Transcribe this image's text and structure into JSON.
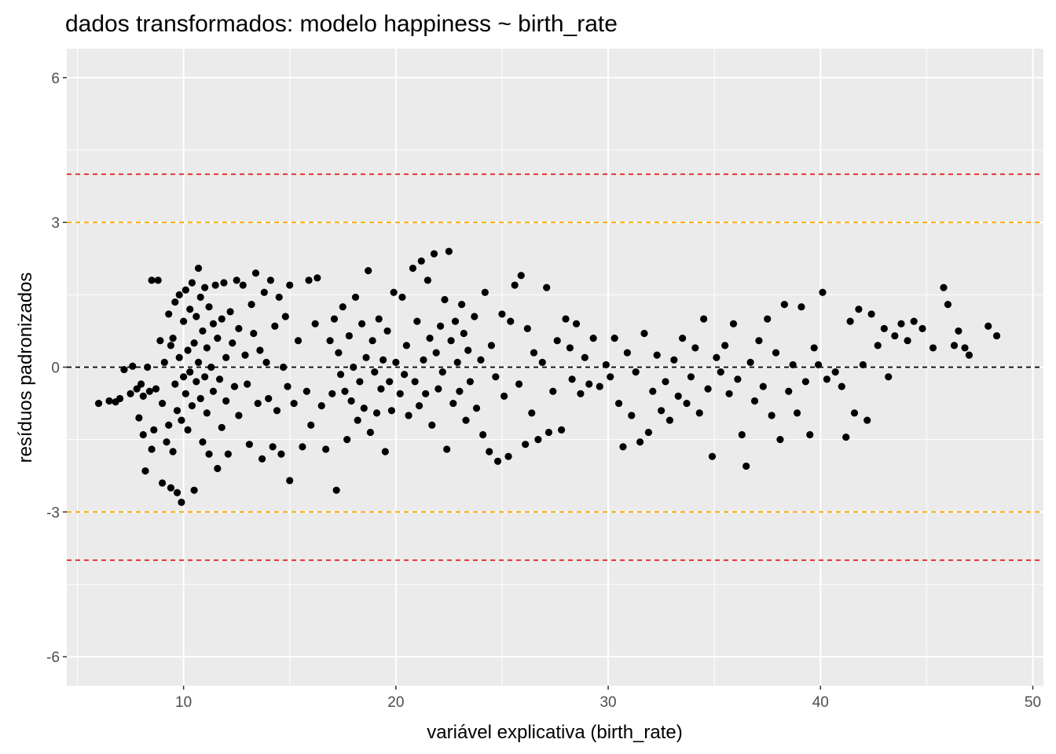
{
  "chart_data": {
    "type": "scatter",
    "title": "dados transformados: modelo happiness ~ birth_rate",
    "xlabel": "variável explicativa (birth_rate)",
    "ylabel": "resíduos padronizados",
    "xlim": [
      4.5,
      50.5
    ],
    "ylim": [
      -6.6,
      6.6
    ],
    "x_ticks": [
      10,
      20,
      30,
      40,
      50
    ],
    "y_ticks": [
      -6,
      -3,
      0,
      3,
      6
    ],
    "x_tick_labels": [
      "10",
      "20",
      "30",
      "40",
      "50"
    ],
    "y_tick_labels": [
      "-6",
      "-3",
      "0",
      "3",
      "6"
    ],
    "grid": true,
    "legend": "none",
    "reference_lines": [
      {
        "y": 4,
        "color": "#e41a1c",
        "style": "dashed"
      },
      {
        "y": 3,
        "color": "#ffa500",
        "style": "dashed"
      },
      {
        "y": 0,
        "color": "#000000",
        "style": "dashed"
      },
      {
        "y": -3,
        "color": "#ffa500",
        "style": "dashed"
      },
      {
        "y": -4,
        "color": "#e41a1c",
        "style": "dashed"
      }
    ],
    "point_color": "#000000",
    "panel_background": "#ebebeb",
    "series": [
      {
        "points": [
          [
            6.0,
            -0.75
          ],
          [
            6.5,
            -0.7
          ],
          [
            6.8,
            -0.72
          ],
          [
            7.0,
            -0.65
          ],
          [
            7.2,
            -0.05
          ],
          [
            7.5,
            -0.55
          ],
          [
            7.6,
            0.02
          ],
          [
            7.8,
            -0.45
          ],
          [
            7.9,
            -1.05
          ],
          [
            8.0,
            -0.35
          ],
          [
            8.1,
            -0.6
          ],
          [
            8.1,
            -1.4
          ],
          [
            8.2,
            -2.15
          ],
          [
            8.3,
            0.0
          ],
          [
            8.4,
            -0.5
          ],
          [
            8.5,
            1.8
          ],
          [
            8.5,
            -1.7
          ],
          [
            8.6,
            -1.3
          ],
          [
            8.7,
            -0.45
          ],
          [
            8.8,
            1.8
          ],
          [
            8.9,
            0.55
          ],
          [
            9.0,
            -2.4
          ],
          [
            9.0,
            -0.75
          ],
          [
            9.1,
            0.1
          ],
          [
            9.2,
            -1.55
          ],
          [
            9.3,
            1.1
          ],
          [
            9.3,
            -1.2
          ],
          [
            9.4,
            0.45
          ],
          [
            9.4,
            -2.5
          ],
          [
            9.5,
            -1.75
          ],
          [
            9.5,
            0.6
          ],
          [
            9.6,
            -0.35
          ],
          [
            9.6,
            1.35
          ],
          [
            9.7,
            -2.6
          ],
          [
            9.7,
            -0.9
          ],
          [
            9.8,
            0.2
          ],
          [
            9.8,
            1.5
          ],
          [
            9.9,
            -1.1
          ],
          [
            9.9,
            -2.8
          ],
          [
            10.0,
            0.95
          ],
          [
            10.0,
            -0.2
          ],
          [
            10.1,
            1.6
          ],
          [
            10.1,
            -0.55
          ],
          [
            10.2,
            0.35
          ],
          [
            10.2,
            -1.3
          ],
          [
            10.3,
            1.2
          ],
          [
            10.3,
            -0.1
          ],
          [
            10.4,
            1.75
          ],
          [
            10.4,
            -0.8
          ],
          [
            10.5,
            0.5
          ],
          [
            10.5,
            -2.55
          ],
          [
            10.6,
            1.05
          ],
          [
            10.6,
            -0.3
          ],
          [
            10.7,
            2.05
          ],
          [
            10.7,
            0.1
          ],
          [
            10.8,
            -0.65
          ],
          [
            10.8,
            1.45
          ],
          [
            10.9,
            0.75
          ],
          [
            10.9,
            -1.55
          ],
          [
            11.0,
            -0.2
          ],
          [
            11.0,
            1.65
          ],
          [
            11.1,
            0.4
          ],
          [
            11.1,
            -0.95
          ],
          [
            11.2,
            1.25
          ],
          [
            11.2,
            -1.8
          ],
          [
            11.3,
            0.0
          ],
          [
            11.4,
            0.9
          ],
          [
            11.4,
            -0.5
          ],
          [
            11.5,
            1.7
          ],
          [
            11.6,
            -2.1
          ],
          [
            11.6,
            0.6
          ],
          [
            11.7,
            -0.25
          ],
          [
            11.8,
            1.0
          ],
          [
            11.8,
            -1.25
          ],
          [
            11.9,
            1.75
          ],
          [
            12.0,
            0.2
          ],
          [
            12.0,
            -0.7
          ],
          [
            12.1,
            -1.8
          ],
          [
            12.2,
            1.15
          ],
          [
            12.3,
            0.5
          ],
          [
            12.4,
            -0.4
          ],
          [
            12.5,
            1.8
          ],
          [
            12.6,
            0.8
          ],
          [
            12.6,
            -1.0
          ],
          [
            12.8,
            1.7
          ],
          [
            12.9,
            0.25
          ],
          [
            13.0,
            -0.35
          ],
          [
            13.1,
            -1.6
          ],
          [
            13.2,
            1.3
          ],
          [
            13.3,
            0.7
          ],
          [
            13.4,
            1.95
          ],
          [
            13.5,
            -0.75
          ],
          [
            13.6,
            0.35
          ],
          [
            13.7,
            -1.9
          ],
          [
            13.8,
            1.55
          ],
          [
            13.9,
            0.1
          ],
          [
            14.0,
            -0.65
          ],
          [
            14.1,
            1.8
          ],
          [
            14.2,
            -1.65
          ],
          [
            14.3,
            0.85
          ],
          [
            14.4,
            -0.9
          ],
          [
            14.5,
            1.45
          ],
          [
            14.6,
            -1.8
          ],
          [
            14.7,
            0.0
          ],
          [
            14.8,
            1.05
          ],
          [
            14.9,
            -0.4
          ],
          [
            15.0,
            -2.35
          ],
          [
            15.0,
            1.7
          ],
          [
            15.2,
            -0.75
          ],
          [
            15.4,
            0.55
          ],
          [
            15.6,
            -1.65
          ],
          [
            15.8,
            -0.5
          ],
          [
            15.9,
            1.8
          ],
          [
            16.0,
            -1.2
          ],
          [
            16.2,
            0.9
          ],
          [
            16.3,
            1.85
          ],
          [
            16.5,
            -0.8
          ],
          [
            16.7,
            -1.7
          ],
          [
            16.9,
            0.55
          ],
          [
            17.0,
            -0.55
          ],
          [
            17.1,
            1.0
          ],
          [
            17.2,
            -2.55
          ],
          [
            17.3,
            0.3
          ],
          [
            17.4,
            -0.15
          ],
          [
            17.5,
            1.25
          ],
          [
            17.6,
            -0.5
          ],
          [
            17.7,
            -1.5
          ],
          [
            17.8,
            0.65
          ],
          [
            17.9,
            -0.7
          ],
          [
            18.0,
            0.0
          ],
          [
            18.1,
            1.45
          ],
          [
            18.2,
            -1.1
          ],
          [
            18.3,
            -0.3
          ],
          [
            18.4,
            0.9
          ],
          [
            18.5,
            -0.85
          ],
          [
            18.6,
            0.2
          ],
          [
            18.7,
            2.0
          ],
          [
            18.8,
            -1.35
          ],
          [
            18.9,
            0.55
          ],
          [
            19.0,
            -0.1
          ],
          [
            19.1,
            -0.95
          ],
          [
            19.2,
            1.0
          ],
          [
            19.3,
            -0.45
          ],
          [
            19.4,
            0.15
          ],
          [
            19.5,
            -1.75
          ],
          [
            19.6,
            0.75
          ],
          [
            19.7,
            -0.3
          ],
          [
            19.8,
            -0.9
          ],
          [
            19.9,
            1.55
          ],
          [
            20.0,
            0.1
          ],
          [
            20.2,
            -0.55
          ],
          [
            20.3,
            1.45
          ],
          [
            20.4,
            -0.15
          ],
          [
            20.5,
            0.45
          ],
          [
            20.6,
            -1.0
          ],
          [
            20.8,
            2.05
          ],
          [
            20.9,
            -0.3
          ],
          [
            21.0,
            0.95
          ],
          [
            21.1,
            -0.8
          ],
          [
            21.2,
            2.2
          ],
          [
            21.3,
            0.15
          ],
          [
            21.4,
            -0.55
          ],
          [
            21.5,
            1.8
          ],
          [
            21.6,
            0.6
          ],
          [
            21.7,
            -1.2
          ],
          [
            21.8,
            2.35
          ],
          [
            21.9,
            0.3
          ],
          [
            22.0,
            -0.45
          ],
          [
            22.1,
            0.85
          ],
          [
            22.2,
            -0.1
          ],
          [
            22.3,
            1.4
          ],
          [
            22.4,
            -1.7
          ],
          [
            22.5,
            2.4
          ],
          [
            22.6,
            0.55
          ],
          [
            22.7,
            -0.75
          ],
          [
            22.8,
            0.95
          ],
          [
            22.9,
            0.1
          ],
          [
            23.0,
            -0.5
          ],
          [
            23.1,
            1.3
          ],
          [
            23.2,
            0.7
          ],
          [
            23.3,
            -1.1
          ],
          [
            23.4,
            0.35
          ],
          [
            23.5,
            -0.3
          ],
          [
            23.7,
            1.05
          ],
          [
            23.8,
            -0.85
          ],
          [
            24.0,
            0.15
          ],
          [
            24.1,
            -1.4
          ],
          [
            24.2,
            1.55
          ],
          [
            24.4,
            -1.75
          ],
          [
            24.5,
            0.45
          ],
          [
            24.7,
            -0.2
          ],
          [
            24.8,
            -1.95
          ],
          [
            25.0,
            1.1
          ],
          [
            25.1,
            -0.6
          ],
          [
            25.3,
            -1.85
          ],
          [
            25.4,
            0.95
          ],
          [
            25.6,
            1.7
          ],
          [
            25.8,
            -0.35
          ],
          [
            25.9,
            1.9
          ],
          [
            26.1,
            -1.6
          ],
          [
            26.2,
            0.8
          ],
          [
            26.4,
            -0.95
          ],
          [
            26.5,
            0.3
          ],
          [
            26.7,
            -1.5
          ],
          [
            26.9,
            0.1
          ],
          [
            27.1,
            1.65
          ],
          [
            27.2,
            -1.35
          ],
          [
            27.4,
            -0.5
          ],
          [
            27.6,
            0.55
          ],
          [
            27.8,
            -1.3
          ],
          [
            28.0,
            1.0
          ],
          [
            28.2,
            0.4
          ],
          [
            28.3,
            -0.25
          ],
          [
            28.5,
            0.9
          ],
          [
            28.7,
            -0.55
          ],
          [
            28.9,
            0.2
          ],
          [
            29.1,
            -0.35
          ],
          [
            29.3,
            0.6
          ],
          [
            29.6,
            -0.4
          ],
          [
            29.9,
            0.05
          ],
          [
            30.1,
            -0.2
          ],
          [
            30.3,
            0.6
          ],
          [
            30.5,
            -0.75
          ],
          [
            30.7,
            -1.65
          ],
          [
            30.9,
            0.3
          ],
          [
            31.1,
            -1.0
          ],
          [
            31.3,
            -0.1
          ],
          [
            31.5,
            -1.55
          ],
          [
            31.7,
            0.7
          ],
          [
            31.9,
            -1.35
          ],
          [
            32.1,
            -0.5
          ],
          [
            32.3,
            0.25
          ],
          [
            32.5,
            -0.9
          ],
          [
            32.7,
            -0.3
          ],
          [
            32.9,
            -1.1
          ],
          [
            33.1,
            0.15
          ],
          [
            33.3,
            -0.6
          ],
          [
            33.5,
            0.6
          ],
          [
            33.7,
            -0.75
          ],
          [
            33.9,
            -0.2
          ],
          [
            34.1,
            0.4
          ],
          [
            34.3,
            -0.95
          ],
          [
            34.5,
            1.0
          ],
          [
            34.7,
            -0.45
          ],
          [
            34.9,
            -1.85
          ],
          [
            35.1,
            0.2
          ],
          [
            35.3,
            -0.1
          ],
          [
            35.5,
            0.45
          ],
          [
            35.7,
            -0.55
          ],
          [
            35.9,
            0.9
          ],
          [
            36.1,
            -0.25
          ],
          [
            36.3,
            -1.4
          ],
          [
            36.5,
            -2.05
          ],
          [
            36.7,
            0.1
          ],
          [
            36.9,
            -0.7
          ],
          [
            37.1,
            0.55
          ],
          [
            37.3,
            -0.4
          ],
          [
            37.5,
            1.0
          ],
          [
            37.7,
            -1.0
          ],
          [
            37.9,
            0.3
          ],
          [
            38.1,
            -1.5
          ],
          [
            38.3,
            1.3
          ],
          [
            38.5,
            -0.5
          ],
          [
            38.7,
            0.05
          ],
          [
            38.9,
            -0.95
          ],
          [
            39.1,
            1.25
          ],
          [
            39.3,
            -0.3
          ],
          [
            39.5,
            -1.4
          ],
          [
            39.7,
            0.4
          ],
          [
            39.9,
            0.05
          ],
          [
            40.1,
            1.55
          ],
          [
            40.3,
            -0.25
          ],
          [
            40.7,
            -0.1
          ],
          [
            41.0,
            -0.4
          ],
          [
            41.2,
            -1.45
          ],
          [
            41.4,
            0.95
          ],
          [
            41.6,
            -0.95
          ],
          [
            41.8,
            1.2
          ],
          [
            42.0,
            0.05
          ],
          [
            42.2,
            -1.1
          ],
          [
            42.4,
            1.1
          ],
          [
            42.7,
            0.45
          ],
          [
            43.0,
            0.8
          ],
          [
            43.2,
            -0.2
          ],
          [
            43.5,
            0.65
          ],
          [
            43.8,
            0.9
          ],
          [
            44.1,
            0.55
          ],
          [
            44.4,
            0.95
          ],
          [
            44.8,
            0.8
          ],
          [
            45.3,
            0.4
          ],
          [
            45.8,
            1.65
          ],
          [
            46.0,
            1.3
          ],
          [
            46.3,
            0.45
          ],
          [
            46.5,
            0.75
          ],
          [
            46.8,
            0.4
          ],
          [
            47.0,
            0.25
          ],
          [
            47.9,
            0.85
          ],
          [
            48.3,
            0.65
          ]
        ]
      }
    ]
  }
}
